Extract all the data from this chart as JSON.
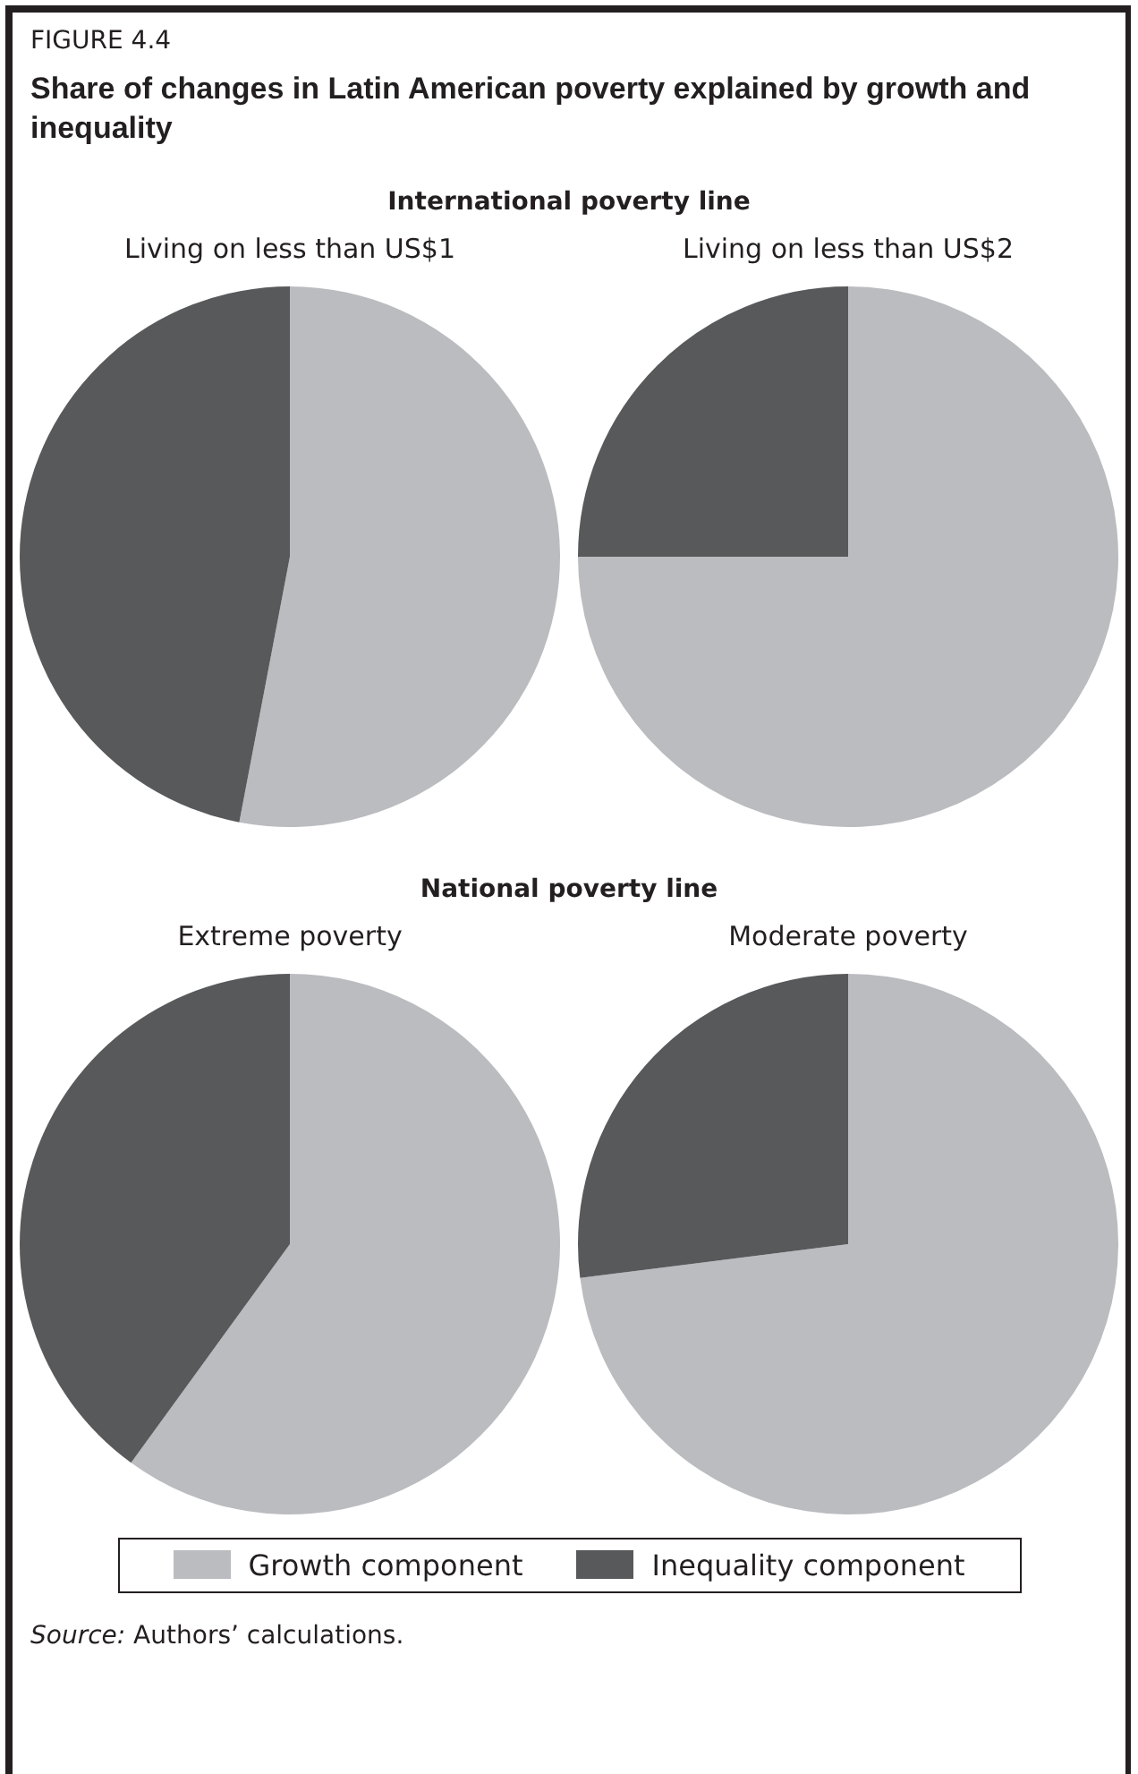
{
  "chart_data": [
    {
      "type": "pie",
      "title": "Living on less than US$1",
      "annotations": [
        "FIGURE 4.4",
        "Share of changes in Latin American poverty explained by growth and inequality",
        "International poverty line"
      ],
      "categories": [
        "Growth component",
        "Inequality component"
      ],
      "values": [
        53,
        47
      ],
      "colors": [
        "#bbbcc0",
        "#58595b"
      ],
      "legend": "bottom"
    },
    {
      "type": "pie",
      "title": "Living on less than US$2",
      "categories": [
        null,
        null
      ],
      "values": [
        75,
        25
      ],
      "colors": [
        "#bbbcc0",
        "#58595b"
      ]
    },
    {
      "type": "pie",
      "title": "Extreme poverty",
      "annotations": [
        "National poverty line"
      ],
      "categories": [
        null,
        null
      ],
      "values": [
        60,
        40
      ],
      "colors": [
        "#bbbcc0",
        "#58595b"
      ]
    },
    {
      "type": "pie",
      "title": "Moderate poverty",
      "annotations": [
        "Source: Authors’ calculations."
      ],
      "categories": [
        null,
        null
      ],
      "values": [
        73,
        27
      ],
      "colors": [
        "#bbbcc0",
        "#58595b"
      ]
    }
  ]
}
